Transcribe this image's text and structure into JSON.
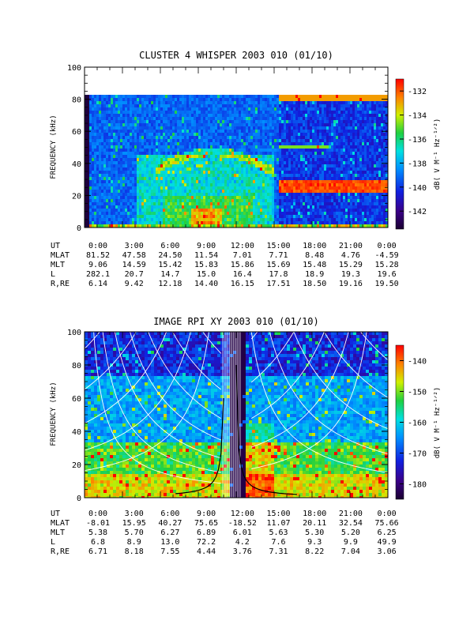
{
  "chart_data": [
    {
      "type": "heatmap",
      "title": "CLUSTER 4 WHISPER 2003 010 (01/10)",
      "ylabel": "FREQUENCY (kHz)",
      "ylim": [
        0,
        100
      ],
      "y_ticks": [
        "0",
        "20",
        "40",
        "60",
        "80",
        "100"
      ],
      "x_ticks": [
        "0:00",
        "3:00",
        "6:00",
        "9:00",
        "12:00",
        "15:00",
        "18:00",
        "21:00",
        "0:00"
      ],
      "colorbar": {
        "label": "dB( V M⁻¹ Hz⁻¹ᐟ²)",
        "ticks": [
          "-132",
          "-134",
          "-136",
          "-138",
          "-140",
          "-142"
        ],
        "range": [
          -143.5,
          -131
        ]
      },
      "ephemeris": [
        {
          "label": "UT",
          "values": [
            "0:00",
            "3:00",
            "6:00",
            "9:00",
            "12:00",
            "15:00",
            "18:00",
            "21:00",
            "0:00"
          ]
        },
        {
          "label": "MLAT",
          "values": [
            "81.52",
            "47.58",
            "24.50",
            "11.54",
            "7.01",
            "7.71",
            "8.48",
            "4.76",
            "-4.59"
          ]
        },
        {
          "label": "MLT",
          "values": [
            "9.06",
            "14.59",
            "15.42",
            "15.83",
            "15.86",
            "15.69",
            "15.48",
            "15.29",
            "15.28"
          ]
        },
        {
          "label": "L",
          "values": [
            "282.1",
            "20.7",
            "14.7",
            "15.0",
            "16.4",
            "17.8",
            "18.9",
            "19.3",
            "19.6"
          ]
        },
        {
          "label": "R,RE",
          "values": [
            "6.14",
            "9.42",
            "12.18",
            "14.40",
            "16.15",
            "17.51",
            "18.50",
            "19.16",
            "19.50"
          ]
        }
      ]
    },
    {
      "type": "heatmap",
      "title": "IMAGE RPI XY 2003 010 (01/10)",
      "ylabel": "FREQUENCY (kHz)",
      "ylim": [
        0,
        100
      ],
      "y_ticks": [
        "0",
        "20",
        "40",
        "60",
        "80",
        "100"
      ],
      "x_ticks": [
        "0:00",
        "3:00",
        "6:00",
        "9:00",
        "12:00",
        "15:00",
        "18:00",
        "21:00",
        "0:00"
      ],
      "colorbar": {
        "label": "dB( V M⁻¹ Hz⁻¹ᐟ²)",
        "ticks": [
          "-140",
          "-150",
          "-160",
          "-170",
          "-180"
        ],
        "range": [
          -185,
          -135
        ]
      },
      "ephemeris": [
        {
          "label": "UT",
          "values": [
            "0:00",
            "3:00",
            "6:00",
            "9:00",
            "12:00",
            "15:00",
            "18:00",
            "21:00",
            "0:00"
          ]
        },
        {
          "label": "MLAT",
          "values": [
            "-8.01",
            "15.95",
            "40.27",
            "75.65",
            "-18.52",
            "11.07",
            "20.11",
            "32.54",
            "75.66"
          ]
        },
        {
          "label": "MLT",
          "values": [
            "5.38",
            "5.70",
            "6.27",
            "6.89",
            "6.01",
            "5.63",
            "5.30",
            "5.20",
            "6.25"
          ]
        },
        {
          "label": "L",
          "values": [
            "6.8",
            "8.9",
            "13.0",
            "72.2",
            "4.2",
            "7.6",
            "9.3",
            "9.9",
            "49.9"
          ]
        },
        {
          "label": "R,RE",
          "values": [
            "6.71",
            "8.18",
            "7.55",
            "4.44",
            "3.76",
            "7.31",
            "8.22",
            "7.04",
            "3.06"
          ]
        }
      ]
    }
  ]
}
